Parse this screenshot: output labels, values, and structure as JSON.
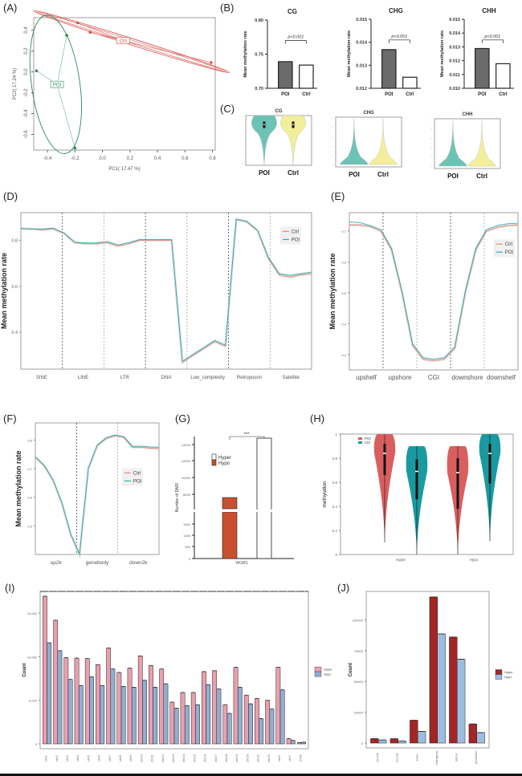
{
  "panels": [
    "(A)",
    "(B)",
    "(C)",
    "(D)",
    "(E)",
    "(F)",
    "(G)",
    "(H)",
    "(I)",
    "(J)"
  ],
  "colors": {
    "poi_green": "#2e8b57",
    "ctrl_red": "#d9534f",
    "bar_dark": "#6b6b6b",
    "violin_teal": "#6cc3b5",
    "violin_yellow": "#f3ee9c",
    "line_ctrl": "#e8877a",
    "line_poi": "#26b5b5",
    "g_hypo": "#c9502f",
    "h_poi": "#d95f5f",
    "h_ctrl": "#1a9aa0",
    "i_hyper": "#e8a0ae",
    "i_hypo": "#93aed0",
    "j_hyper": "#a32626",
    "j_hypo": "#9dbde0"
  },
  "chart_data": [
    {
      "id": "A",
      "type": "scatter",
      "title": "",
      "xlabel": "PC1( 17.47 %)",
      "ylabel": "PC2( 17.24 %)",
      "xlim": [
        -0.5,
        0.82
      ],
      "ylim": [
        -0.75,
        0.52
      ],
      "xticks": [
        "-0.4",
        "-0.2",
        "0.0",
        "0.2",
        "0.4",
        "0.6",
        "0.8"
      ],
      "xtick_values": [
        -0.4,
        -0.2,
        0.0,
        0.2,
        0.4,
        0.6,
        0.8
      ],
      "yticks": [
        "0.4",
        "0.2",
        "0.0",
        "-0.2",
        "-0.4",
        "-0.6"
      ],
      "ytick_values": [
        0.4,
        0.2,
        0.0,
        -0.2,
        -0.4,
        -0.6
      ],
      "groups": [
        {
          "name": "Ctrl",
          "centroid": [
            0.15,
            0.3
          ],
          "points": [
            [
              -0.18,
              0.47
            ],
            [
              -0.09,
              0.38
            ],
            [
              0.79,
              0.09
            ]
          ]
        },
        {
          "name": "POI",
          "centroid": [
            -0.33,
            -0.12
          ],
          "points": [
            [
              -0.26,
              0.35
            ],
            [
              -0.48,
              0.01
            ],
            [
              -0.2,
              -0.73
            ]
          ]
        }
      ]
    },
    {
      "id": "B1",
      "type": "bar",
      "title": "CG",
      "ylabel": "Mean methylation rate",
      "categories": [
        "POI",
        "Ctrl"
      ],
      "values": [
        0.739,
        0.734
      ],
      "ylim": [
        0.7,
        0.8
      ],
      "yticks": [
        "0.70",
        "0.75",
        "0.80"
      ],
      "ytick_values": [
        0.7,
        0.75,
        0.8
      ],
      "annotation": "p<0.001"
    },
    {
      "id": "B2",
      "type": "bar",
      "title": "CHG",
      "ylabel": "Mean methylation rate",
      "categories": [
        "POI",
        "Ctrl"
      ],
      "values": [
        0.01368,
        0.01248
      ],
      "ylim": [
        0.012,
        0.015
      ],
      "yticks": [
        "0.012",
        "0.013",
        "0.014",
        "0.015"
      ],
      "ytick_values": [
        0.012,
        0.013,
        0.014,
        0.015
      ],
      "annotation": "p<0.001"
    },
    {
      "id": "B3",
      "type": "bar",
      "title": "CHH",
      "ylabel": "Mean methylation rate",
      "categories": [
        "POI",
        "Ctrl"
      ],
      "values": [
        0.01288,
        0.01178
      ],
      "ylim": [
        0.01,
        0.015
      ],
      "yticks": [
        "0.010",
        "0.011",
        "0.012",
        "0.013",
        "0.014",
        "0.015"
      ],
      "ytick_values": [
        0.01,
        0.011,
        0.012,
        0.013,
        0.014,
        0.015
      ],
      "annotation": "p<0.001"
    },
    {
      "id": "C1",
      "type": "violin",
      "title": "CG",
      "categories": [
        "POI",
        "Ctrl"
      ],
      "shape": "top-heavy"
    },
    {
      "id": "C2",
      "type": "violin",
      "title": "CHG",
      "categories": [
        "POI",
        "Ctrl"
      ],
      "shape": "bottom-heavy"
    },
    {
      "id": "C3",
      "type": "violin",
      "title": "CHH",
      "categories": [
        "POI",
        "Ctrl"
      ],
      "shape": "bottom-heavy"
    },
    {
      "id": "D",
      "type": "line",
      "ylabel": "Mean methylation rate",
      "categories": [
        "SINE",
        "LINE",
        "LTR",
        "DNA",
        "Low_complexity",
        "Retroposon",
        "Satellite"
      ],
      "ylim": [
        0.24,
        0.92
      ],
      "yticks": [
        "0.4",
        "0.6",
        "0.8"
      ],
      "ytick_values": [
        0.4,
        0.6,
        0.8
      ],
      "legend": [
        "Ctrl",
        "POI"
      ],
      "legend_position": "top-right",
      "series": [
        {
          "name": "Ctrl",
          "values": [
            0.85,
            0.85,
            0.845,
            0.85,
            0.83,
            0.79,
            0.785,
            0.785,
            0.79,
            0.775,
            0.785,
            0.8,
            0.8,
            0.8,
            0.8,
            0.27,
            0.3,
            0.33,
            0.36,
            0.34,
            0.89,
            0.88,
            0.84,
            0.72,
            0.65,
            0.64,
            0.65,
            0.655
          ]
        },
        {
          "name": "POI",
          "values": [
            0.852,
            0.848,
            0.85,
            0.852,
            0.832,
            0.792,
            0.788,
            0.788,
            0.795,
            0.78,
            0.79,
            0.803,
            0.803,
            0.803,
            0.803,
            0.275,
            0.305,
            0.335,
            0.365,
            0.345,
            0.892,
            0.882,
            0.842,
            0.725,
            0.655,
            0.648,
            0.655,
            0.662
          ]
        }
      ]
    },
    {
      "id": "E",
      "type": "line",
      "ylabel": "Mean methylation rate",
      "categories": [
        "upshelf",
        "upshore",
        "CGI",
        "downshore",
        "downshelf"
      ],
      "ylim": [
        0.25,
        0.76
      ],
      "yticks": [
        "0.7",
        "0.6",
        "0.5",
        "0.4",
        "0.3"
      ],
      "ytick_values": [
        0.7,
        0.6,
        0.5,
        0.4,
        0.3
      ],
      "legend": [
        "Ctrl",
        "POI"
      ],
      "legend_position": "right",
      "series": [
        {
          "name": "Ctrl",
          "values": [
            0.72,
            0.72,
            0.715,
            0.7,
            0.64,
            0.5,
            0.33,
            0.285,
            0.28,
            0.285,
            0.32,
            0.5,
            0.64,
            0.7,
            0.712,
            0.718,
            0.72
          ]
        },
        {
          "name": "POI",
          "values": [
            0.73,
            0.728,
            0.718,
            0.705,
            0.645,
            0.505,
            0.335,
            0.29,
            0.285,
            0.29,
            0.325,
            0.505,
            0.645,
            0.705,
            0.718,
            0.724,
            0.726
          ]
        }
      ]
    },
    {
      "id": "F",
      "type": "line",
      "ylabel": "Mean methylation rate",
      "categories": [
        "up2k",
        "genebody",
        "down2k"
      ],
      "ylim": [
        0.4,
        0.86
      ],
      "yticks": [
        "0.8",
        "0.7",
        "0.6",
        "0.5"
      ],
      "ytick_values": [
        0.8,
        0.7,
        0.6,
        0.5
      ],
      "legend": [
        "Ctrl",
        "POI"
      ],
      "legend_position": "right",
      "series": [
        {
          "name": "Ctrl",
          "values": [
            0.74,
            0.71,
            0.66,
            0.58,
            0.47,
            0.4,
            0.7,
            0.78,
            0.805,
            0.815,
            0.81,
            0.775,
            0.775,
            0.772,
            0.77
          ]
        },
        {
          "name": "POI",
          "values": [
            0.742,
            0.712,
            0.662,
            0.582,
            0.472,
            0.402,
            0.702,
            0.782,
            0.808,
            0.818,
            0.812,
            0.778,
            0.778,
            0.776,
            0.775
          ]
        }
      ]
    },
    {
      "id": "G",
      "type": "bar",
      "xlabel": "WGBS",
      "ylabel": "Number of DMR",
      "categories": [
        "Hypo",
        "Hyper"
      ],
      "values": [
        8200,
        15500
      ],
      "yticks": [
        "0",
        "500",
        "1000",
        "1500",
        "8000",
        "10000",
        "12000",
        "14000"
      ],
      "axis_break": true,
      "legend": [
        "Hyper",
        "Hypo"
      ],
      "annotation": "***"
    },
    {
      "id": "H",
      "type": "violin",
      "ylabel": "methylation",
      "categories": [
        "Hyper",
        "Hypo"
      ],
      "ylim": [
        0,
        1
      ],
      "yticks": [
        "0",
        "0.2",
        "0.4",
        "0.6",
        "0.8",
        "1"
      ],
      "ytick_values": [
        0,
        0.2,
        0.4,
        0.6,
        0.8,
        1
      ],
      "legend": [
        "POI",
        "Ctrl"
      ],
      "series": [
        {
          "name": "POI",
          "groups": [
            {
              "min": 0.1,
              "max": 1.0,
              "median": 0.84,
              "q1": 0.66,
              "q3": 0.92
            },
            {
              "min": 0.0,
              "max": 0.9,
              "median": 0.68,
              "q1": 0.38,
              "q3": 0.8
            }
          ]
        },
        {
          "name": "Ctrl",
          "groups": [
            {
              "min": 0.0,
              "max": 0.9,
              "median": 0.69,
              "q1": 0.46,
              "q3": 0.79
            },
            {
              "min": 0.11,
              "max": 1.0,
              "median": 0.84,
              "q1": 0.59,
              "q3": 0.92
            }
          ]
        }
      ]
    },
    {
      "id": "I",
      "type": "bar",
      "ylabel": "Count",
      "categories": [
        "chr1",
        "chr2",
        "chr3",
        "chr4",
        "chr5",
        "chr6",
        "chr7",
        "chr8",
        "chr9",
        "chr10",
        "chr11",
        "chr12",
        "chr13",
        "chr14",
        "chr15",
        "chr16",
        "chr17",
        "chr18",
        "chr19",
        "chr20",
        "chr21",
        "chr22",
        "chrX",
        "chrY",
        "chrM"
      ],
      "ylim": [
        0,
        17500
      ],
      "yticks": [
        "0",
        "5,000",
        "10,000",
        "15,000"
      ],
      "ytick_values": [
        0,
        5000,
        10000,
        15000
      ],
      "legend": [
        "Hyper",
        "Hypo"
      ],
      "legend_position": "right",
      "series": [
        {
          "name": "Hyper",
          "values": [
            16950,
            14200,
            9900,
            9850,
            9800,
            9100,
            11000,
            8200,
            8700,
            10100,
            9000,
            8600,
            4800,
            5900,
            5900,
            8300,
            8400,
            4500,
            8800,
            5600,
            5200,
            5000,
            8800,
            600,
            150
          ]
        },
        {
          "name": "Hypo",
          "values": [
            11600,
            10700,
            7400,
            6700,
            7700,
            6700,
            8600,
            6600,
            6500,
            7300,
            6500,
            6900,
            4100,
            4400,
            4500,
            6800,
            6300,
            3500,
            6500,
            4600,
            2900,
            4000,
            6200,
            400,
            200
          ]
        }
      ]
    },
    {
      "id": "J",
      "type": "bar",
      "ylabel": "Count",
      "categories": [
        "3'UTR",
        "5'UTR",
        "exon",
        "intergenic",
        "intron",
        "promoter"
      ],
      "ylim": [
        0,
        123000
      ],
      "yticks": [
        "0",
        "25000",
        "50000",
        "75000",
        "100000"
      ],
      "ytick_values": [
        0,
        25000,
        50000,
        75000,
        100000
      ],
      "legend": [
        "Hyper",
        "Hypo"
      ],
      "legend_position": "right",
      "series": [
        {
          "name": "Hyper",
          "values": [
            3600,
            3500,
            18500,
            118500,
            86000,
            15500
          ]
        },
        {
          "name": "Hypo",
          "values": [
            2500,
            1800,
            9500,
            88500,
            68000,
            8500
          ]
        }
      ]
    }
  ]
}
